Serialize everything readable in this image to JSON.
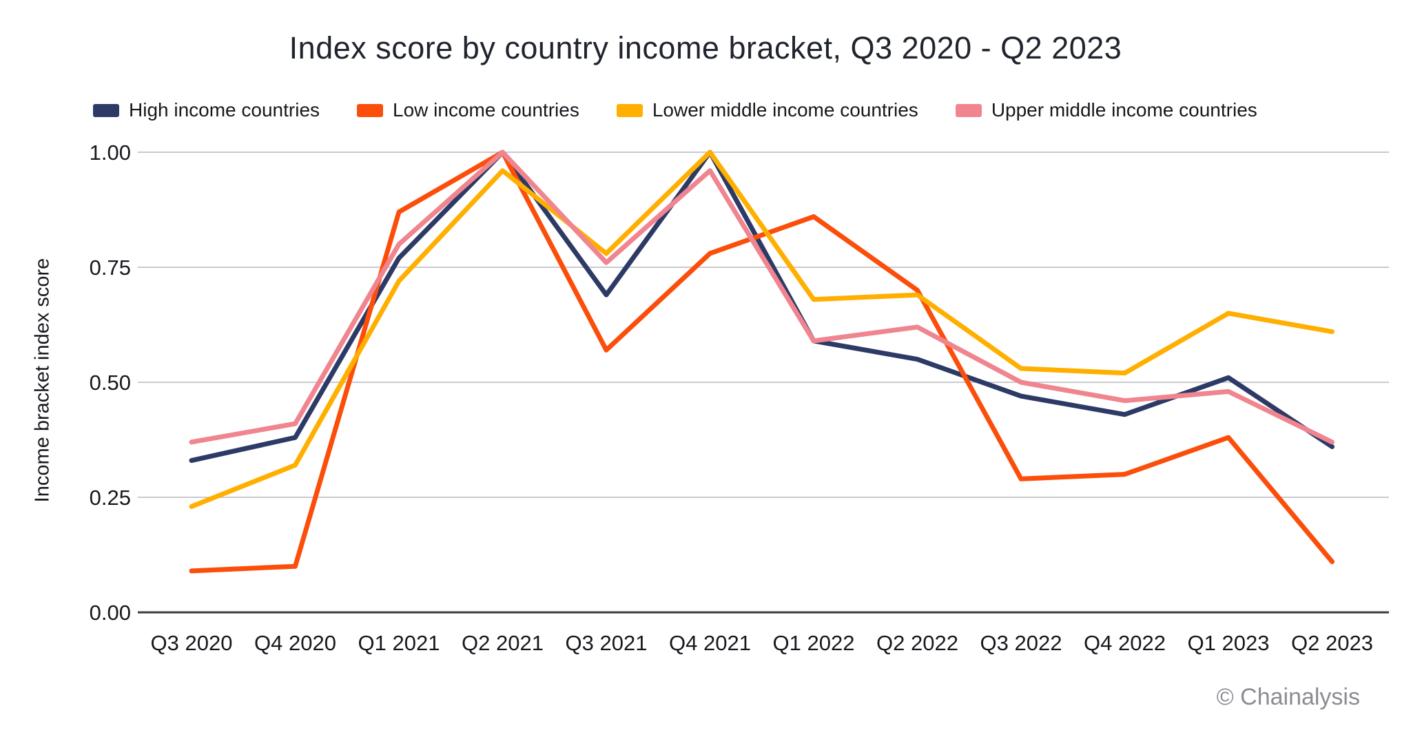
{
  "page": {
    "title": "Index score by country income bracket, Q3 2020 - Q2 2023",
    "watermark": "© Chainalysis"
  },
  "colors": {
    "high_income": "#2d3a66",
    "low_income": "#fb4e0b",
    "lower_middle_income": "#ffaf00",
    "upper_middle_income": "#f0858f",
    "gridline": "#c9c9cf",
    "axis_line": "#3a3b42",
    "title_text": "#20242e",
    "tick_text": "#16181d",
    "watermark_text": "#8b8b93"
  },
  "chart_data": {
    "type": "line",
    "title": "Index score by country income bracket, Q3 2020 - Q2 2023",
    "xlabel": "",
    "ylabel": "Income bracket index score",
    "ylim": [
      0,
      1
    ],
    "grid": "horizontal",
    "legend_position": "top",
    "y_ticks": [
      {
        "label": "0.00",
        "value": 0
      },
      {
        "label": "0.25",
        "value": 0.25
      },
      {
        "label": "0.50",
        "value": 0.5
      },
      {
        "label": "0.75",
        "value": 0.75
      },
      {
        "label": "1.00",
        "value": 1
      }
    ],
    "categories": [
      "Q3 2020",
      "Q4 2020",
      "Q1 2021",
      "Q2 2021",
      "Q3 2021",
      "Q4 2021",
      "Q1 2022",
      "Q2 2022",
      "Q3 2022",
      "Q4 2022",
      "Q1 2023",
      "Q2 2023"
    ],
    "series": [
      {
        "name": "High income countries",
        "color_key": "high_income",
        "values": [
          0.33,
          0.38,
          0.77,
          1.0,
          0.69,
          1.0,
          0.59,
          0.55,
          0.47,
          0.43,
          0.51,
          0.36
        ]
      },
      {
        "name": "Low income countries",
        "color_key": "low_income",
        "values": [
          0.09,
          0.1,
          0.87,
          1.0,
          0.57,
          0.78,
          0.86,
          0.7,
          0.29,
          0.3,
          0.38,
          0.11
        ]
      },
      {
        "name": "Lower middle income countries",
        "color_key": "lower_middle_income",
        "values": [
          0.23,
          0.32,
          0.72,
          0.96,
          0.78,
          1.0,
          0.68,
          0.69,
          0.53,
          0.52,
          0.65,
          0.61
        ]
      },
      {
        "name": "Upper middle income countries",
        "color_key": "upper_middle_income",
        "values": [
          0.37,
          0.41,
          0.8,
          1.0,
          0.76,
          0.96,
          0.59,
          0.62,
          0.5,
          0.46,
          0.48,
          0.37
        ]
      }
    ]
  }
}
